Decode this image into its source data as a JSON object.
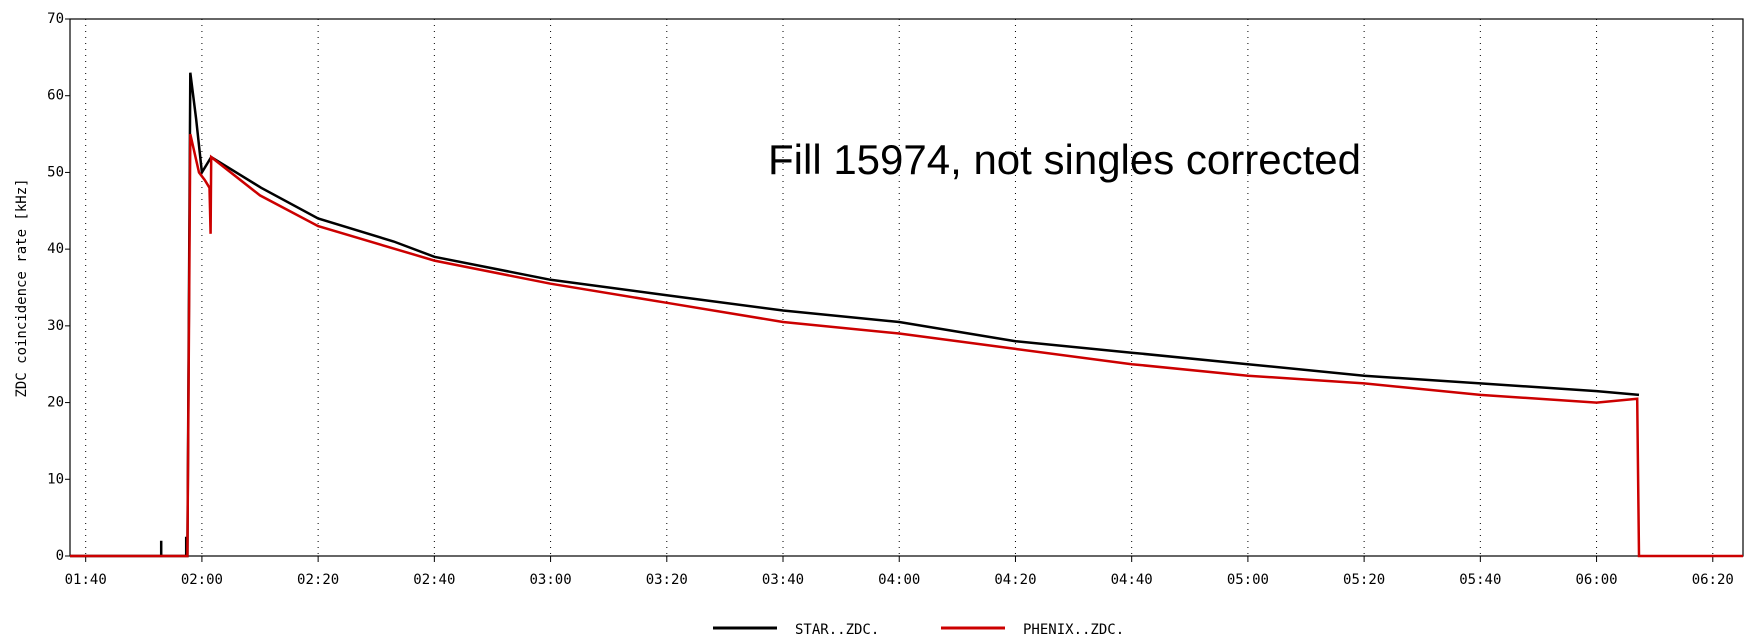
{
  "chart_data": {
    "type": "line",
    "ylabel": "ZDC coincidence rate [kHz]",
    "annotation": "Fill 15974, not singles corrected",
    "xlim": [
      97.3,
      385.2
    ],
    "xticks": [
      {
        "value": 100,
        "label": "01:40"
      },
      {
        "value": 120,
        "label": "02:00"
      },
      {
        "value": 140,
        "label": "02:20"
      },
      {
        "value": 160,
        "label": "02:40"
      },
      {
        "value": 180,
        "label": "03:00"
      },
      {
        "value": 200,
        "label": "03:20"
      },
      {
        "value": 220,
        "label": "03:40"
      },
      {
        "value": 240,
        "label": "04:00"
      },
      {
        "value": 260,
        "label": "04:20"
      },
      {
        "value": 280,
        "label": "04:40"
      },
      {
        "value": 300,
        "label": "05:00"
      },
      {
        "value": 320,
        "label": "05:20"
      },
      {
        "value": 340,
        "label": "05:40"
      },
      {
        "value": 360,
        "label": "06:00"
      },
      {
        "value": 380,
        "label": "06:20"
      }
    ],
    "ylim": [
      0,
      70
    ],
    "yticks": [
      0,
      10,
      20,
      30,
      40,
      50,
      60,
      70
    ],
    "grid": true,
    "series": [
      {
        "name": "STAR..ZDC.",
        "color": "#000000",
        "x": [
          97.3,
          113,
          113,
          113,
          117.3,
          117.3,
          117.3,
          117.5,
          118,
          119,
          120,
          121.6,
          130.2,
          140,
          153,
          160,
          180,
          200,
          220,
          240,
          260,
          280,
          300,
          320,
          340,
          360,
          367.3
        ],
        "values": [
          0,
          0,
          2,
          0,
          0,
          2.5,
          0,
          0,
          63,
          57,
          50,
          52,
          48,
          44,
          41,
          39,
          36,
          34,
          32,
          30.5,
          28,
          26.5,
          25,
          23.5,
          22.5,
          21.5,
          21
        ]
      },
      {
        "name": "PHENIX..ZDC.",
        "color": "#cc0000",
        "x": [
          97.3,
          117.5,
          118,
          119.5,
          120.5,
          121.3,
          121.5,
          121.6,
          130,
          140,
          160,
          180,
          200,
          220,
          240,
          260,
          280,
          300,
          320,
          340,
          360,
          367,
          367.3,
          385.2
        ],
        "values": [
          0,
          0,
          55,
          50,
          49,
          48,
          42,
          52,
          47,
          43,
          38.5,
          35.5,
          33,
          30.5,
          29,
          27,
          25,
          23.5,
          22.5,
          21,
          20,
          20.5,
          0,
          0
        ]
      }
    ]
  }
}
